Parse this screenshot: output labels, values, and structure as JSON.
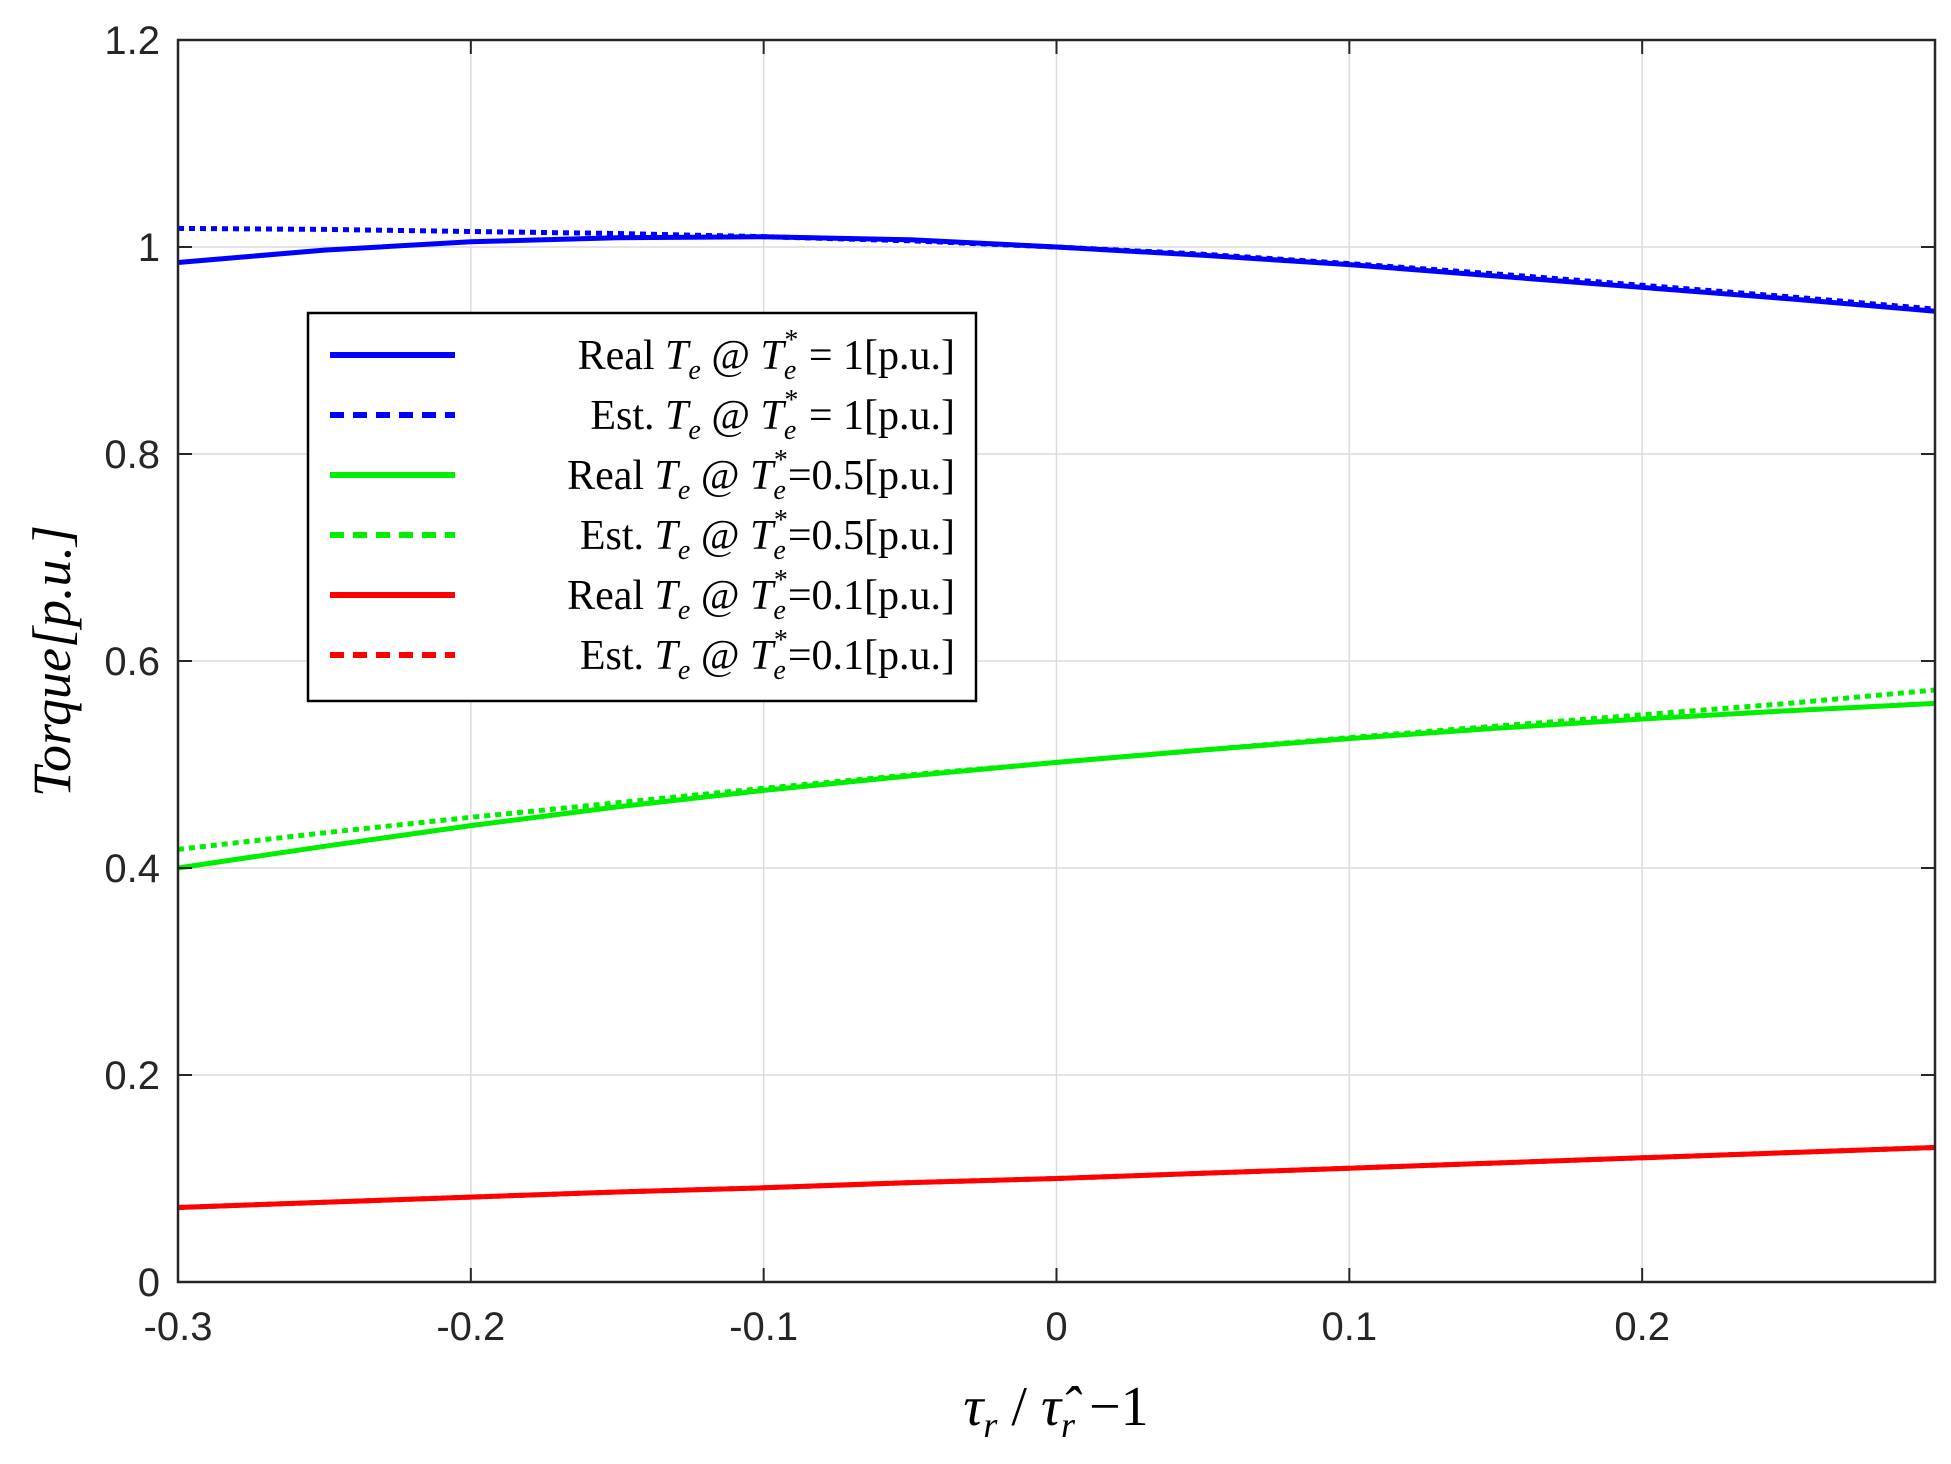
{
  "chart_data": {
    "type": "line",
    "title": "",
    "xlabel": "τr / τ̂r −1",
    "ylabel": "Torque[p.u.]",
    "xlim": [
      -0.3,
      0.3
    ],
    "ylim": [
      0,
      1.2
    ],
    "xticks": [
      -0.3,
      -0.2,
      -0.1,
      0,
      0.1,
      0.2
    ],
    "xtick_labels": [
      "-0.3",
      "-0.2",
      "-0.1",
      "0",
      "0.1",
      "0.2"
    ],
    "yticks": [
      0,
      0.2,
      0.4,
      0.6,
      0.8,
      1,
      1.2
    ],
    "ytick_labels": [
      "0",
      "0.2",
      "0.4",
      "0.6",
      "0.8",
      "1",
      "1.2"
    ],
    "grid": true,
    "legend_position": "upper-left",
    "x": [
      -0.3,
      -0.25,
      -0.2,
      -0.15,
      -0.1,
      -0.05,
      0,
      0.05,
      0.1,
      0.15,
      0.2,
      0.25,
      0.3
    ],
    "series": [
      {
        "name": "Real Te @ Te* = 1[p.u.]",
        "legend": {
          "pre": "Real ",
          "sym": "T",
          "sub": "e",
          "mid": " @ ",
          "sym2": "T",
          "sub2": "e",
          "sup2": "*",
          "post": " = 1[p.u.]"
        },
        "color": "#0000ff",
        "dash": "solid",
        "values": [
          0.985,
          0.997,
          1.005,
          1.009,
          1.01,
          1.007,
          1.0,
          0.992,
          0.983,
          0.972,
          0.961,
          0.95,
          0.938
        ]
      },
      {
        "name": "Est. Te @ Te* = 1[p.u.]",
        "legend": {
          "pre": "Est. ",
          "sym": "T",
          "sub": "e",
          "mid": " @ ",
          "sym2": "T",
          "sub2": "e",
          "sup2": "*",
          "post": " = 1[p.u.]"
        },
        "color": "#0000ff",
        "dash": "dotted",
        "values": [
          1.018,
          1.017,
          1.015,
          1.013,
          1.01,
          1.006,
          1.0,
          0.993,
          0.984,
          0.974,
          0.963,
          0.952,
          0.94
        ]
      },
      {
        "name": "Real Te @ Te*=0.5[p.u.]",
        "legend": {
          "pre": "Real ",
          "sym": "T",
          "sub": "e",
          "mid": " @ ",
          "sym2": "T",
          "sub2": "e",
          "sup2": "*",
          "post": "=0.5[p.u.]"
        },
        "color": "#00ee00",
        "dash": "solid",
        "values": [
          0.4,
          0.421,
          0.441,
          0.459,
          0.475,
          0.489,
          0.502,
          0.514,
          0.525,
          0.535,
          0.544,
          0.552,
          0.559
        ]
      },
      {
        "name": "Est. Te @ Te*=0.5[p.u.]",
        "legend": {
          "pre": "Est. ",
          "sym": "T",
          "sub": "e",
          "mid": " @ ",
          "sym2": "T",
          "sub2": "e",
          "sup2": "*",
          "post": "=0.5[p.u.]"
        },
        "color": "#00ee00",
        "dash": "dotted",
        "values": [
          0.418,
          0.434,
          0.449,
          0.463,
          0.477,
          0.49,
          0.502,
          0.514,
          0.526,
          0.537,
          0.548,
          0.559,
          0.572
        ]
      },
      {
        "name": "Real Te @ Te*=0.1[p.u.]",
        "legend": {
          "pre": "Real ",
          "sym": "T",
          "sub": "e",
          "mid": " @ ",
          "sym2": "T",
          "sub2": "e",
          "sup2": "*",
          "post": "=0.1[p.u.]"
        },
        "color": "#ff0000",
        "dash": "solid",
        "values": [
          0.072,
          0.077,
          0.082,
          0.087,
          0.091,
          0.096,
          0.1,
          0.105,
          0.11,
          0.115,
          0.12,
          0.125,
          0.13
        ]
      },
      {
        "name": "Est. Te @ Te*=0.1[p.u.]",
        "legend": {
          "pre": "Est. ",
          "sym": "T",
          "sub": "e",
          "mid": " @ ",
          "sym2": "T",
          "sub2": "e",
          "sup2": "*",
          "post": "=0.1[p.u.]"
        },
        "color": "#ff0000",
        "dash": "dotted",
        "values": [
          0.072,
          0.077,
          0.082,
          0.087,
          0.091,
          0.096,
          0.1,
          0.105,
          0.11,
          0.115,
          0.12,
          0.125,
          0.13
        ]
      }
    ]
  }
}
